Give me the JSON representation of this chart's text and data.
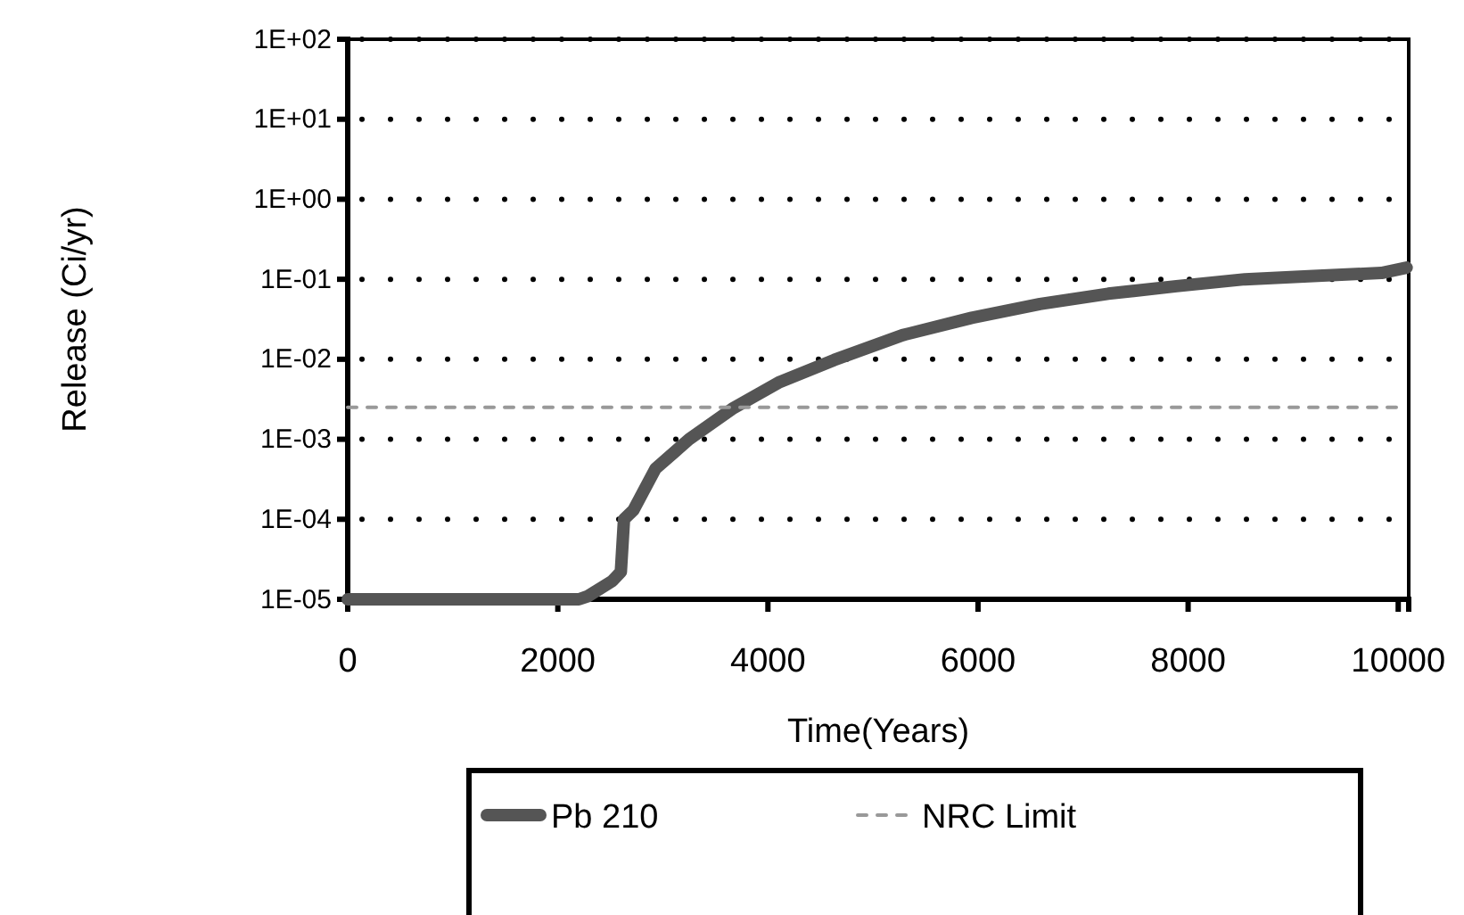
{
  "chart_data": {
    "type": "line",
    "xlabel": "Time(Years)",
    "ylabel": "Release (Ci/yr)",
    "log": "y",
    "grid": "y",
    "legend": "bottom",
    "xlim": [
      0,
      10100
    ],
    "xticks": [
      0,
      2000,
      4000,
      6000,
      8000,
      10000
    ],
    "ylim": [
      1e-05,
      100
    ],
    "yticks": [
      {
        "value": 1e-05,
        "label": "1E-05"
      },
      {
        "value": 0.0001,
        "label": "1E-04"
      },
      {
        "value": 0.001,
        "label": "1E-03"
      },
      {
        "value": 0.01,
        "label": "1E-02"
      },
      {
        "value": 0.1,
        "label": "1E-01"
      },
      {
        "value": 1,
        "label": "1E+00"
      },
      {
        "value": 10,
        "label": "1E+01"
      },
      {
        "value": 100,
        "label": "1E+02"
      }
    ],
    "series": [
      {
        "name": "Pb 210",
        "color": "#555555",
        "line_style": "solid",
        "x": [
          0,
          1000,
          2200,
          2290,
          2520,
          2600,
          2630,
          2720,
          2930,
          3250,
          3660,
          4100,
          4630,
          5280,
          5940,
          6590,
          7240,
          7890,
          8540,
          9190,
          9840,
          10080
        ],
        "values": [
          1e-05,
          1e-05,
          1e-05,
          1.1e-05,
          1.7e-05,
          2.2e-05,
          0.0001,
          0.00013,
          0.00043,
          0.001,
          0.0024,
          0.0051,
          0.0098,
          0.02,
          0.033,
          0.049,
          0.066,
          0.082,
          0.1,
          0.11,
          0.12,
          0.14
        ]
      },
      {
        "name": "NRC Limit",
        "color": "#999999",
        "line_style": "dashed",
        "x": [
          0,
          10000
        ],
        "values": [
          0.0025,
          0.0025
        ]
      }
    ]
  }
}
